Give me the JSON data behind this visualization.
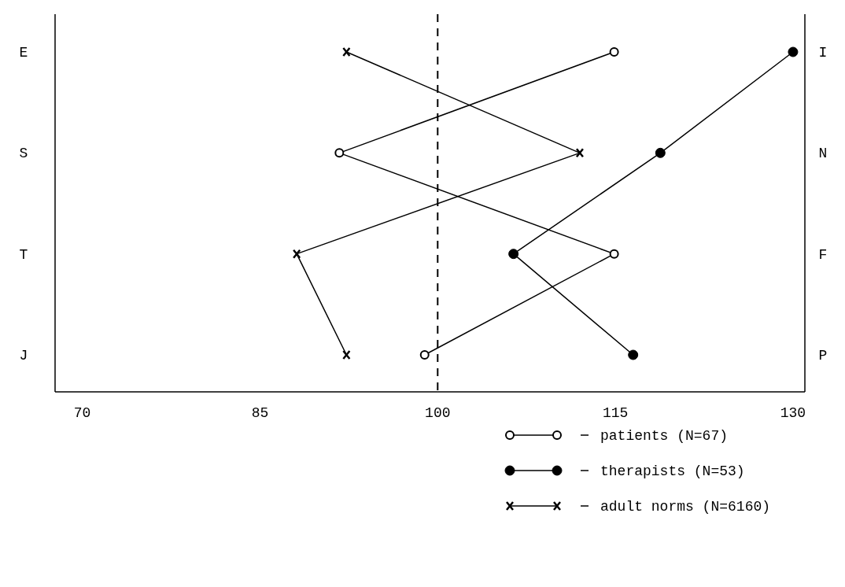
{
  "chart_data": {
    "type": "line",
    "orientation": "horizontal",
    "categories": [
      "E",
      "S",
      "T",
      "J"
    ],
    "y2_categories": [
      "I",
      "N",
      "F",
      "P"
    ],
    "xlim": [
      67.7,
      131
    ],
    "xticks": [
      70,
      85,
      100,
      115,
      130
    ],
    "series": [
      {
        "name": "patients (N=67)",
        "color": "#000000",
        "marker": "open-circle",
        "values": [
          114.9,
          91.7,
          114.9,
          98.9
        ]
      },
      {
        "name": "therapists (N=53)",
        "color": "#000000",
        "marker": "circle",
        "values": [
          130,
          118.8,
          106.4,
          116.5
        ]
      },
      {
        "name": "adult norms (N=6160)",
        "color": "#000000",
        "marker": "cross",
        "values": [
          92.3,
          112,
          88.1,
          92.3
        ]
      }
    ],
    "ref_lines": [
      {
        "axis": "x",
        "value": 100,
        "line_style": "dashed",
        "color": "#000000"
      }
    ],
    "legend": "bottom right",
    "grid": false
  }
}
